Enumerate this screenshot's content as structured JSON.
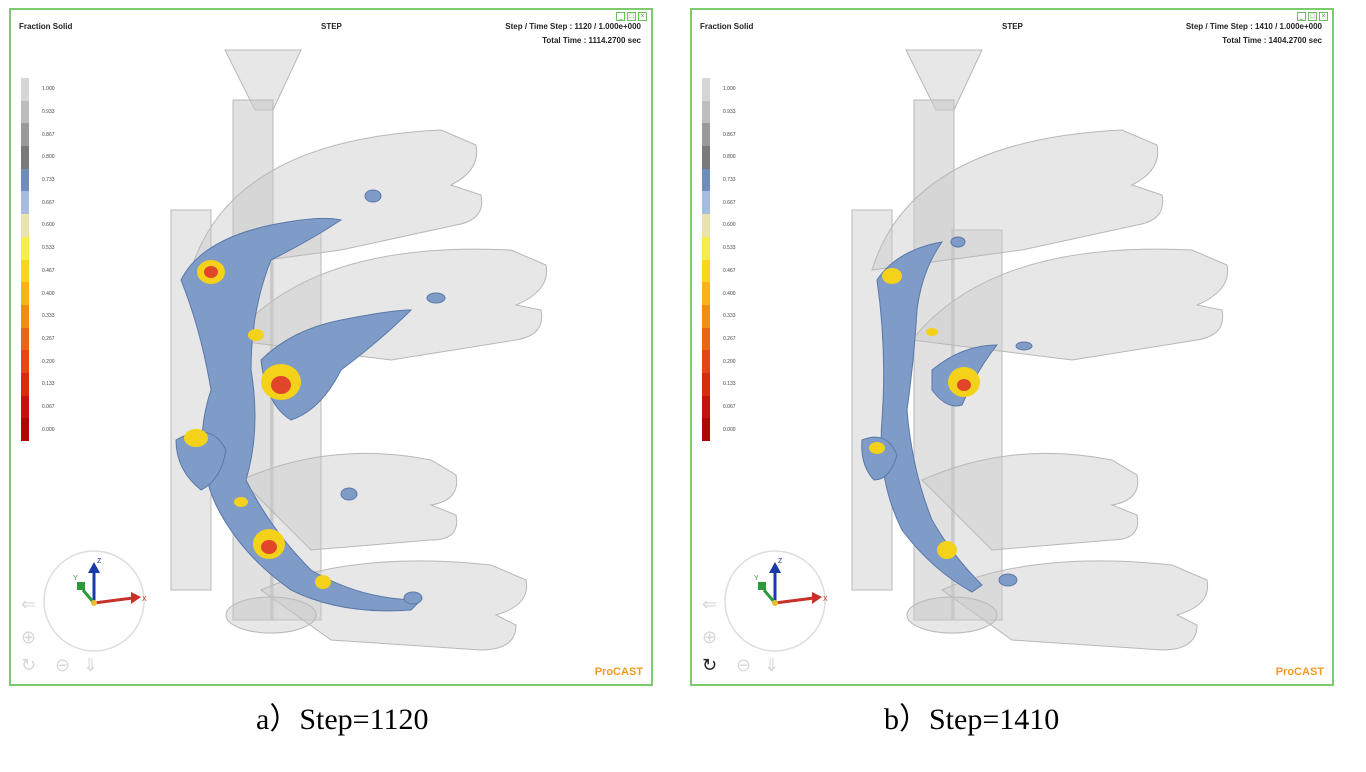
{
  "panels": [
    {
      "result_label": "Fraction Solid",
      "mode_label": "STEP",
      "step_line": "Step / Time Step : 1120 / 1.000e+000",
      "time_line": "Total   Time        : 1114.2700 sec",
      "brand": "ProCAST",
      "caption": "a）Step=1120"
    },
    {
      "result_label": "Fraction Solid",
      "mode_label": "STEP",
      "step_line": "Step / Time Step : 1410 / 1.000e+000",
      "time_line": "Total   Time        : 1404.2700 sec",
      "brand": "ProCAST",
      "caption": "b）Step=1410"
    }
  ],
  "color_scale": {
    "values": [
      "1.000",
      "0.933",
      "0.867",
      "0.800",
      "0.733",
      "0.667",
      "0.600",
      "0.533",
      "0.467",
      "0.400",
      "0.333",
      "0.267",
      "0.200",
      "0.133",
      "0.067",
      "0.000"
    ],
    "colors": [
      "#d6d6d6",
      "#bdbdbd",
      "#9a9a9a",
      "#7a7a7a",
      "#6e8db8",
      "#a7bde0",
      "#e9e3b0",
      "#f3ee4a",
      "#f7d61b",
      "#f6b514",
      "#f28d12",
      "#ec6611",
      "#e54612",
      "#d92a12",
      "#c81010",
      "#b00606"
    ]
  },
  "axes": {
    "x": "X",
    "y": "Y",
    "z": "Z"
  },
  "colors": {
    "frame": "#7ccc6e",
    "casting": "#7f9bc8",
    "hotspot": "#f4d21a",
    "brand": "#f39a1e"
  }
}
